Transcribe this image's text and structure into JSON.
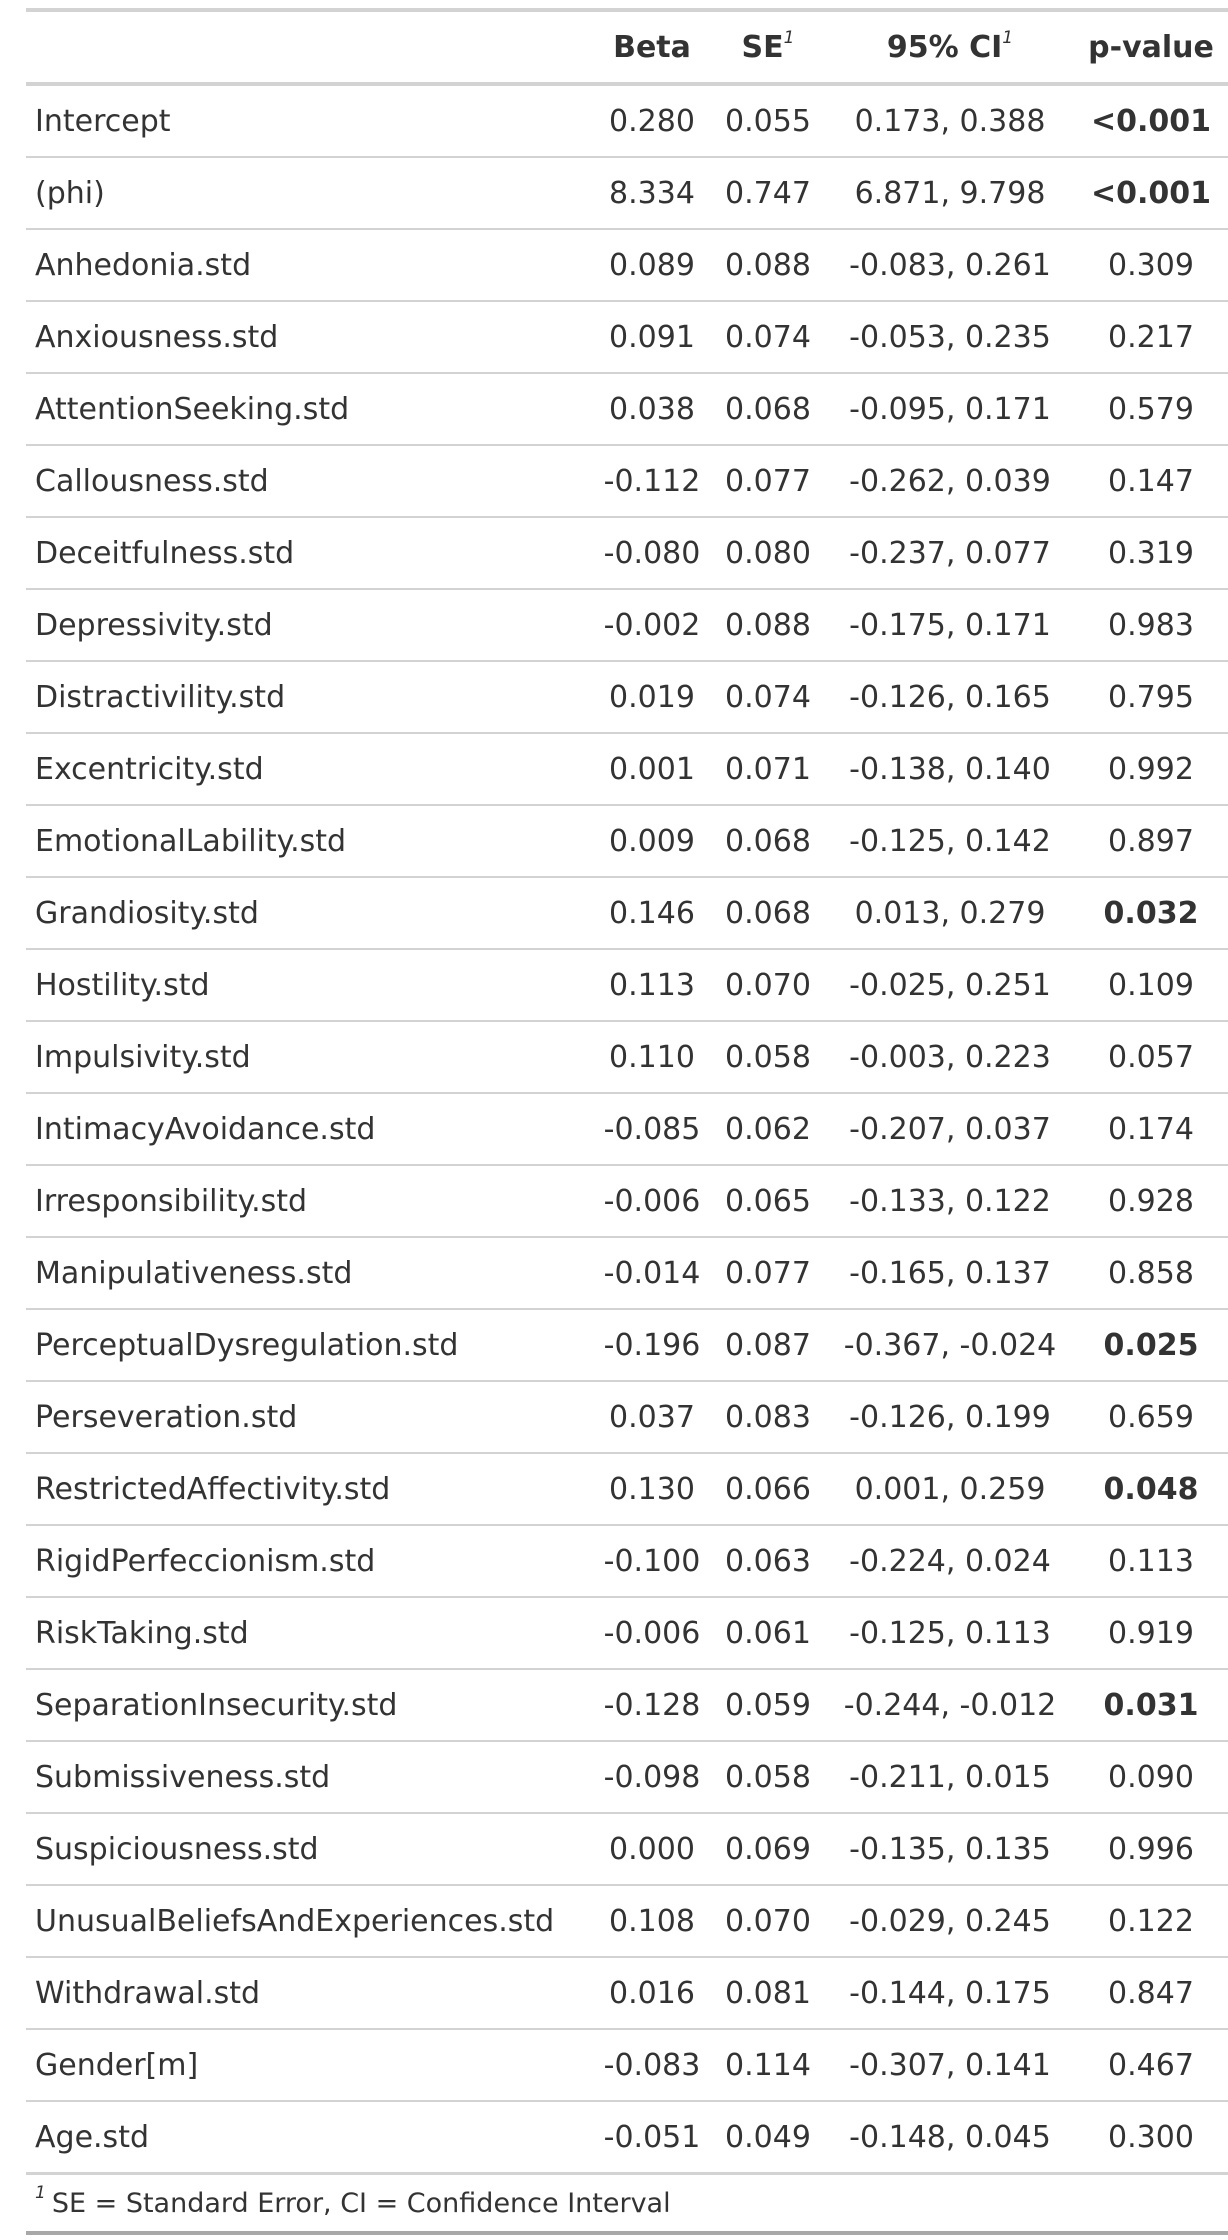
{
  "table": {
    "headers": {
      "variable": "",
      "beta": "Beta",
      "se": "SE",
      "se_marker": "1",
      "ci": "95% CI",
      "ci_marker": "1",
      "p": "p-value"
    },
    "rows": [
      {
        "variable": "Intercept",
        "beta": "0.280",
        "se": "0.055",
        "ci": "0.173, 0.388",
        "p": "<0.001",
        "p_bold": true
      },
      {
        "variable": "(phi)",
        "beta": "8.334",
        "se": "0.747",
        "ci": "6.871, 9.798",
        "p": "<0.001",
        "p_bold": true
      },
      {
        "variable": "Anhedonia.std",
        "beta": "0.089",
        "se": "0.088",
        "ci": "-0.083, 0.261",
        "p": "0.309",
        "p_bold": false
      },
      {
        "variable": "Anxiousness.std",
        "beta": "0.091",
        "se": "0.074",
        "ci": "-0.053, 0.235",
        "p": "0.217",
        "p_bold": false
      },
      {
        "variable": "AttentionSeeking.std",
        "beta": "0.038",
        "se": "0.068",
        "ci": "-0.095, 0.171",
        "p": "0.579",
        "p_bold": false
      },
      {
        "variable": "Callousness.std",
        "beta": "-0.112",
        "se": "0.077",
        "ci": "-0.262, 0.039",
        "p": "0.147",
        "p_bold": false
      },
      {
        "variable": "Deceitfulness.std",
        "beta": "-0.080",
        "se": "0.080",
        "ci": "-0.237, 0.077",
        "p": "0.319",
        "p_bold": false
      },
      {
        "variable": "Depressivity.std",
        "beta": "-0.002",
        "se": "0.088",
        "ci": "-0.175, 0.171",
        "p": "0.983",
        "p_bold": false
      },
      {
        "variable": "Distractivility.std",
        "beta": "0.019",
        "se": "0.074",
        "ci": "-0.126, 0.165",
        "p": "0.795",
        "p_bold": false
      },
      {
        "variable": "Excentricity.std",
        "beta": "0.001",
        "se": "0.071",
        "ci": "-0.138, 0.140",
        "p": "0.992",
        "p_bold": false
      },
      {
        "variable": "EmotionalLability.std",
        "beta": "0.009",
        "se": "0.068",
        "ci": "-0.125, 0.142",
        "p": "0.897",
        "p_bold": false
      },
      {
        "variable": "Grandiosity.std",
        "beta": "0.146",
        "se": "0.068",
        "ci": "0.013, 0.279",
        "p": "0.032",
        "p_bold": true
      },
      {
        "variable": "Hostility.std",
        "beta": "0.113",
        "se": "0.070",
        "ci": "-0.025, 0.251",
        "p": "0.109",
        "p_bold": false
      },
      {
        "variable": "Impulsivity.std",
        "beta": "0.110",
        "se": "0.058",
        "ci": "-0.003, 0.223",
        "p": "0.057",
        "p_bold": false
      },
      {
        "variable": "IntimacyAvoidance.std",
        "beta": "-0.085",
        "se": "0.062",
        "ci": "-0.207, 0.037",
        "p": "0.174",
        "p_bold": false
      },
      {
        "variable": "Irresponsibility.std",
        "beta": "-0.006",
        "se": "0.065",
        "ci": "-0.133, 0.122",
        "p": "0.928",
        "p_bold": false
      },
      {
        "variable": "Manipulativeness.std",
        "beta": "-0.014",
        "se": "0.077",
        "ci": "-0.165, 0.137",
        "p": "0.858",
        "p_bold": false
      },
      {
        "variable": "PerceptualDysregulation.std",
        "beta": "-0.196",
        "se": "0.087",
        "ci": "-0.367, -0.024",
        "p": "0.025",
        "p_bold": true
      },
      {
        "variable": "Perseveration.std",
        "beta": "0.037",
        "se": "0.083",
        "ci": "-0.126, 0.199",
        "p": "0.659",
        "p_bold": false
      },
      {
        "variable": "RestrictedAffectivity.std",
        "beta": "0.130",
        "se": "0.066",
        "ci": "0.001, 0.259",
        "p": "0.048",
        "p_bold": true
      },
      {
        "variable": "RigidPerfeccionism.std",
        "beta": "-0.100",
        "se": "0.063",
        "ci": "-0.224, 0.024",
        "p": "0.113",
        "p_bold": false
      },
      {
        "variable": "RiskTaking.std",
        "beta": "-0.006",
        "se": "0.061",
        "ci": "-0.125, 0.113",
        "p": "0.919",
        "p_bold": false
      },
      {
        "variable": "SeparationInsecurity.std",
        "beta": "-0.128",
        "se": "0.059",
        "ci": "-0.244, -0.012",
        "p": "0.031",
        "p_bold": true
      },
      {
        "variable": "Submissiveness.std",
        "beta": "-0.098",
        "se": "0.058",
        "ci": "-0.211, 0.015",
        "p": "0.090",
        "p_bold": false
      },
      {
        "variable": "Suspiciousness.std",
        "beta": "0.000",
        "se": "0.069",
        "ci": "-0.135, 0.135",
        "p": "0.996",
        "p_bold": false
      },
      {
        "variable": "UnusualBeliefsAndExperiences.std",
        "beta": "0.108",
        "se": "0.070",
        "ci": "-0.029, 0.245",
        "p": "0.122",
        "p_bold": false
      },
      {
        "variable": "Withdrawal.std",
        "beta": "0.016",
        "se": "0.081",
        "ci": "-0.144, 0.175",
        "p": "0.847",
        "p_bold": false
      },
      {
        "variable": "Gender[m]",
        "beta": "-0.083",
        "se": "0.114",
        "ci": "-0.307, 0.141",
        "p": "0.467",
        "p_bold": false
      },
      {
        "variable": "Age.std",
        "beta": "-0.051",
        "se": "0.049",
        "ci": "-0.148, 0.045",
        "p": "0.300",
        "p_bold": false
      }
    ],
    "footnote": {
      "marker": "1",
      "text": "SE = Standard Error, CI = Confidence Interval"
    }
  }
}
